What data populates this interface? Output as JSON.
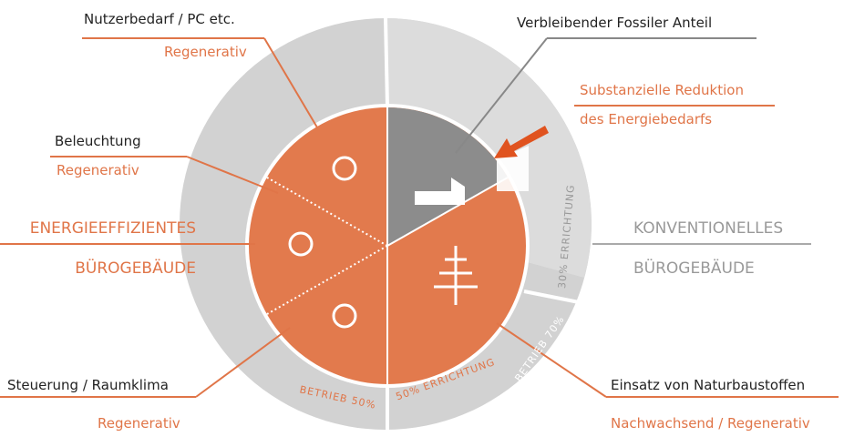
{
  "labels": {
    "nutzerbedarf": "Nutzerbedarf / PC etc.",
    "nutzerbedarf_sub": "Regenerativ",
    "beleuchtung": "Beleuchtung",
    "beleuchtung_sub": "Regenerativ",
    "left_title_1": "ENERGIEEFFIZIENTES",
    "left_title_2": "BÜROGEBÄUDE",
    "steuerung": "Steuerung / Raumklima",
    "steuerung_sub": "Regenerativ",
    "fossil": "Verbleibender Fossiler Anteil",
    "reduktion_1": "Substanzielle Reduktion",
    "reduktion_2": "des Energiebedarfs",
    "right_title_1": "KONVENTIONELLES",
    "right_title_2": "BÜROGEBÄUDE",
    "naturbaustoffe": "Einsatz von Naturbaustoffen",
    "naturbaustoffe_sub": "Nachwachsend / Regenerativ"
  },
  "ring": {
    "betrieb_50": "BETRIEB 50%",
    "errichtung_50": "50% ERRICHTUNG",
    "betrieb_70": "BETRIEB 70%",
    "errichtung_30": "30% ERRICHTUNG"
  }
}
